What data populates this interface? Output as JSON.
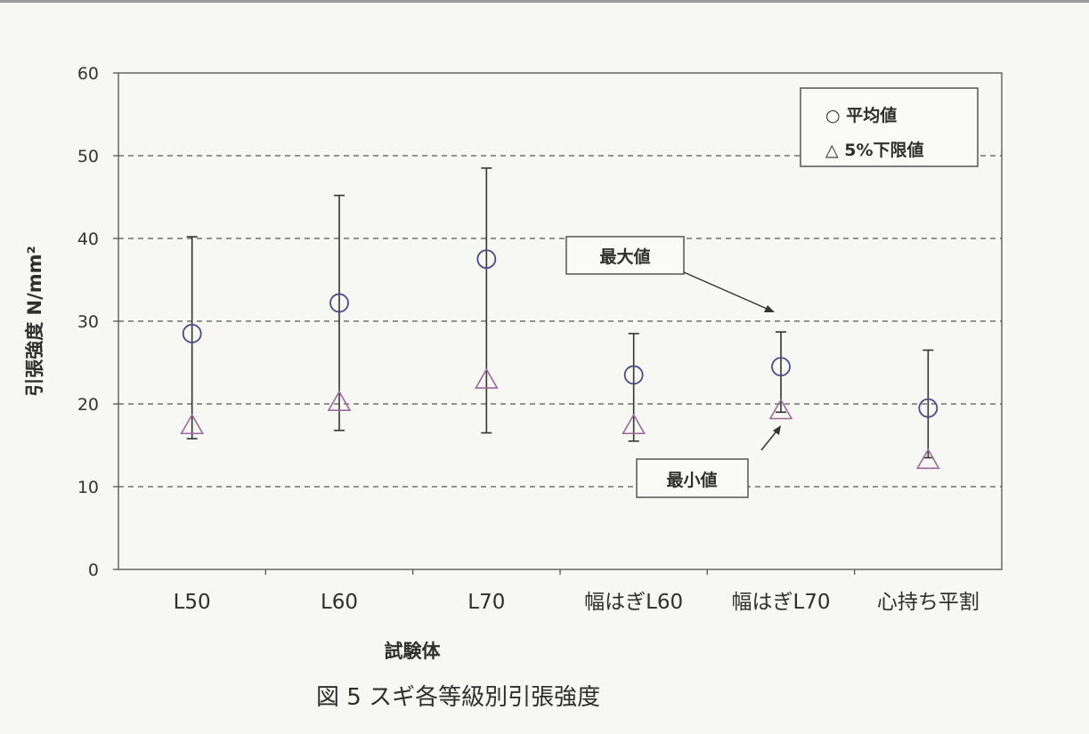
{
  "chart_data": {
    "type": "scatter",
    "title": "",
    "caption": "図 5  スギ各等級別引張強度",
    "xlabel": "試験体",
    "ylabel": "引張強度  N/mm²",
    "ylim": [
      0,
      60
    ],
    "yticks": [
      "0",
      "10",
      "20",
      "30",
      "40",
      "50",
      "60"
    ],
    "grid": true,
    "legend_position": "top-right",
    "categories": [
      "L50",
      "L60",
      "L70",
      "幅はぎL60",
      "幅はぎL70",
      "心持ち平割"
    ],
    "series": [
      {
        "name": "○ 平均値",
        "marker": "circle",
        "color": "#4a4a86",
        "values": [
          28.5,
          32.2,
          37.5,
          23.5,
          24.5,
          19.5
        ]
      },
      {
        "name": "△ 5%下限値",
        "marker": "triangle",
        "color": "#9b6a9b",
        "values": [
          17.5,
          20.3,
          23.0,
          17.5,
          19.3,
          13.3
        ]
      }
    ],
    "error_bars": {
      "label_max": "最大値",
      "label_min": "最小値",
      "max": [
        40.2,
        45.2,
        48.5,
        28.5,
        28.7,
        26.5
      ],
      "min": [
        15.8,
        16.8,
        16.5,
        15.5,
        19.0,
        13.5
      ]
    }
  }
}
